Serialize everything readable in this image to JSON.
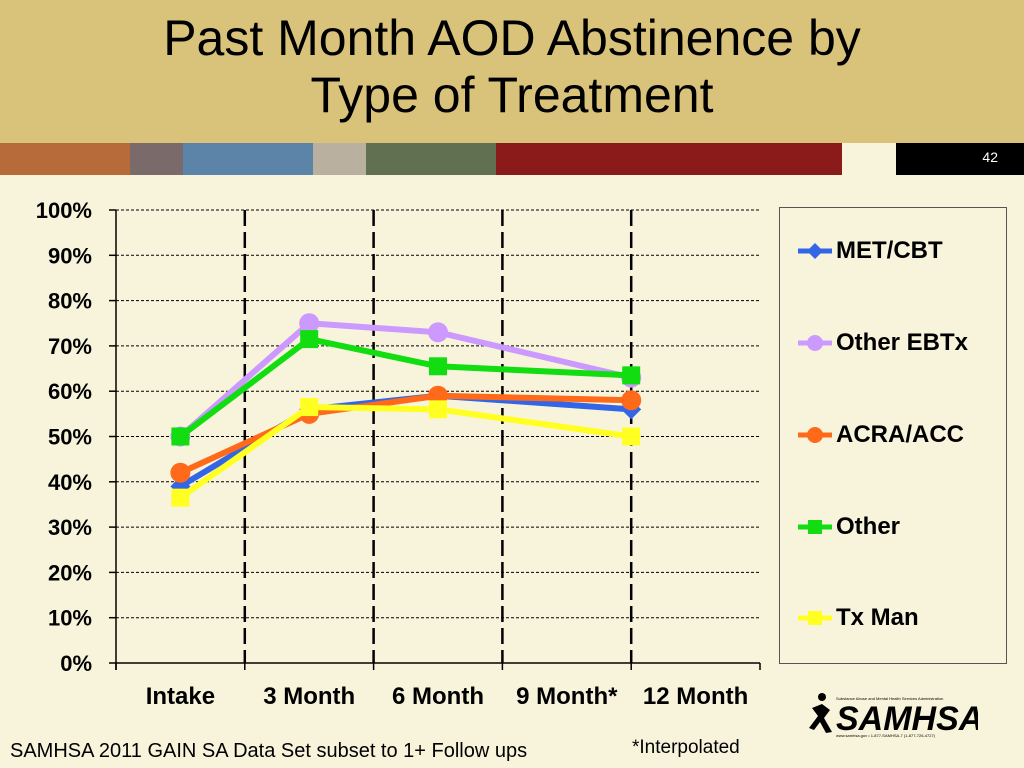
{
  "slide": {
    "title": "Past Month AOD Abstinence by\nType of Treatment",
    "slide_number": "42",
    "source_note": "SAMHSA 2011 GAIN SA Data Set subset to 1+ Follow ups",
    "footnote": "*Interpolated",
    "logo_text": "SAMHSA",
    "logo_small_text_top": "Substance Abuse and Mental Health Services Administration",
    "logo_small_text_bottom": "www.samhsa.gov • 1-877-SAMHSA-7 (1-877-726-4727)",
    "strip_colors": [
      "#b86b3a",
      "#7a6a6a",
      "#5b84a8",
      "#bab0a0",
      "#607050",
      "#8b1a1a"
    ]
  },
  "chart_data": {
    "type": "line",
    "categories": [
      "Intake",
      "3 Month",
      "6 Month",
      "9 Month*",
      "12 Month"
    ],
    "yticks": [
      "0%",
      "10%",
      "20%",
      "30%",
      "40%",
      "50%",
      "60%",
      "70%",
      "80%",
      "90%",
      "100%"
    ],
    "ylim": [
      0,
      100
    ],
    "grid": true,
    "legend_position": "right",
    "series": [
      {
        "name": "MET/CBT",
        "color": "#3366e6",
        "marker": "diamond",
        "x": [
          0,
          1,
          2,
          3.5
        ],
        "values": [
          39,
          56,
          59,
          56
        ]
      },
      {
        "name": "Other EBTx",
        "color": "#cc99ff",
        "marker": "circle",
        "x": [
          0,
          1,
          2,
          3.5
        ],
        "values": [
          50,
          75,
          73,
          63
        ]
      },
      {
        "name": "ACRA/ACC",
        "color": "#ff6a1a",
        "marker": "circle",
        "x": [
          0,
          1,
          2,
          3.5
        ],
        "values": [
          42,
          55,
          59,
          58
        ]
      },
      {
        "name": "Other",
        "color": "#11dd11",
        "marker": "square",
        "x": [
          0,
          1,
          2,
          3.5
        ],
        "values": [
          50,
          71.5,
          65.5,
          63.5
        ]
      },
      {
        "name": "Tx Man",
        "color": "#ffff22",
        "marker": "square",
        "x": [
          0,
          1,
          2,
          3.5
        ],
        "values": [
          36.5,
          56.5,
          56,
          50
        ]
      }
    ]
  }
}
